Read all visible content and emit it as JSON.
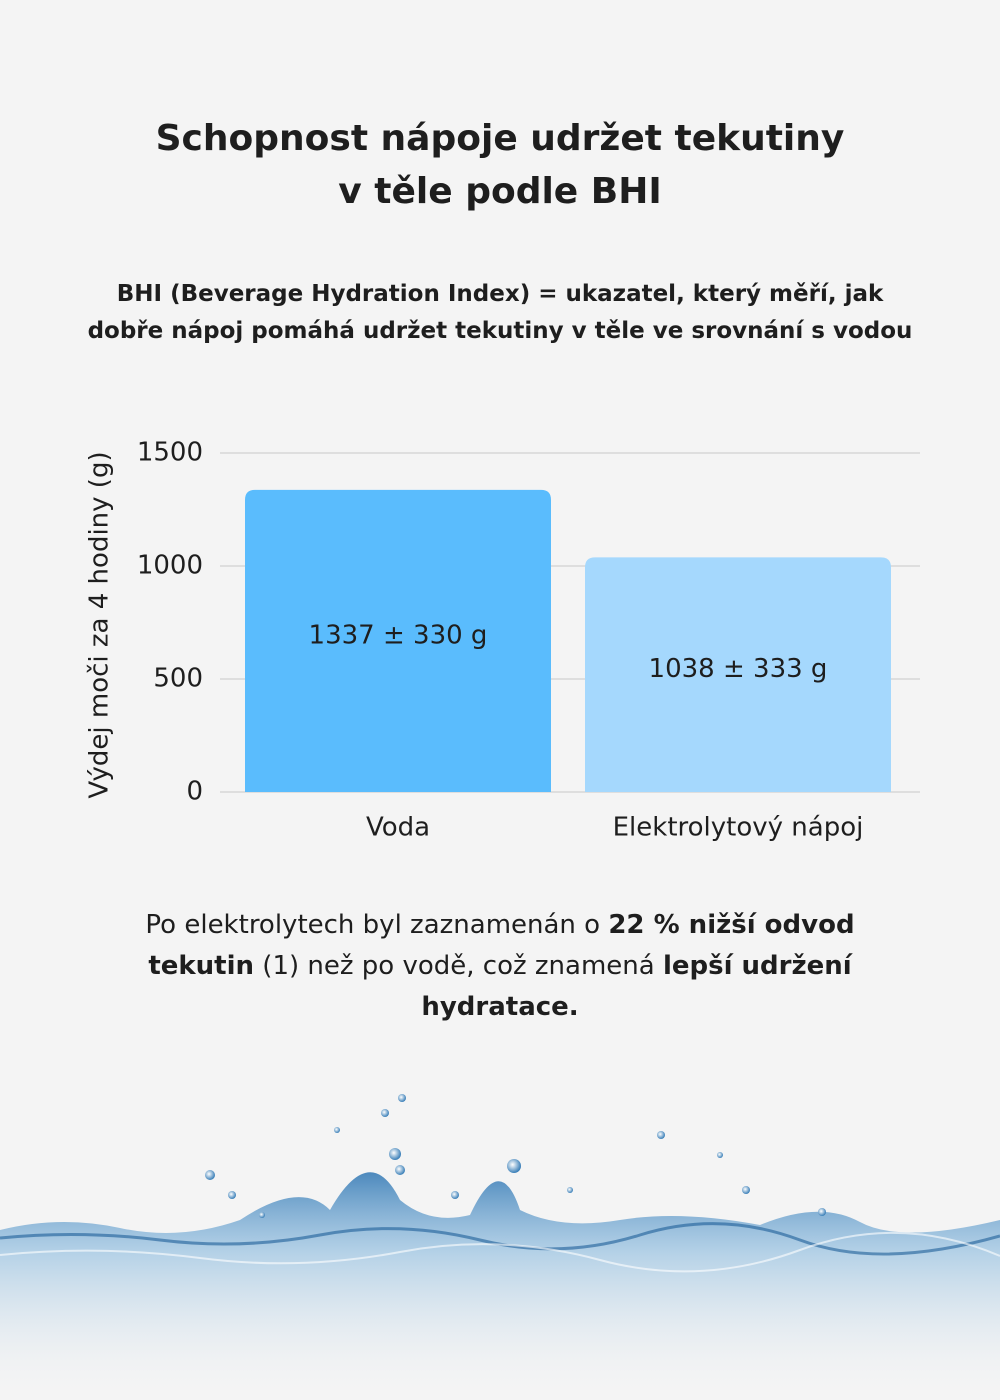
{
  "chart_data": {
    "type": "bar",
    "title": "Schopnost nápoje udržet tekutiny v těle podle BHI",
    "subtitle": "BHI (Beverage Hydration Index) = ukazatel, který měří, jak dobře nápoj pomáhá udržet tekutiny v těle ve srovnání s vodou",
    "y_label": "Výdej moči za 4 hodiny (g)",
    "categories": [
      "Voda",
      "Elektrolytový nápoj"
    ],
    "values": [
      1337,
      1038
    ],
    "value_labels": [
      "1337 ± 330 g",
      "1038 ± 333 g"
    ],
    "colors": [
      "#5abcfd",
      "#a5d8fd"
    ],
    "ylim": [
      0,
      1500
    ],
    "yticks": [
      0,
      500,
      1000,
      1500
    ],
    "grid": true,
    "annotation": [
      {
        "text": "Po elektrolytech byl zaznamenán o ",
        "bold": false
      },
      {
        "text": "22 % nižší odvod tekutin",
        "bold": true
      },
      {
        "text": " (1) než po vodě, což znamená ",
        "bold": false
      },
      {
        "text": "lepší udržení hydratace.",
        "bold": true
      }
    ]
  }
}
